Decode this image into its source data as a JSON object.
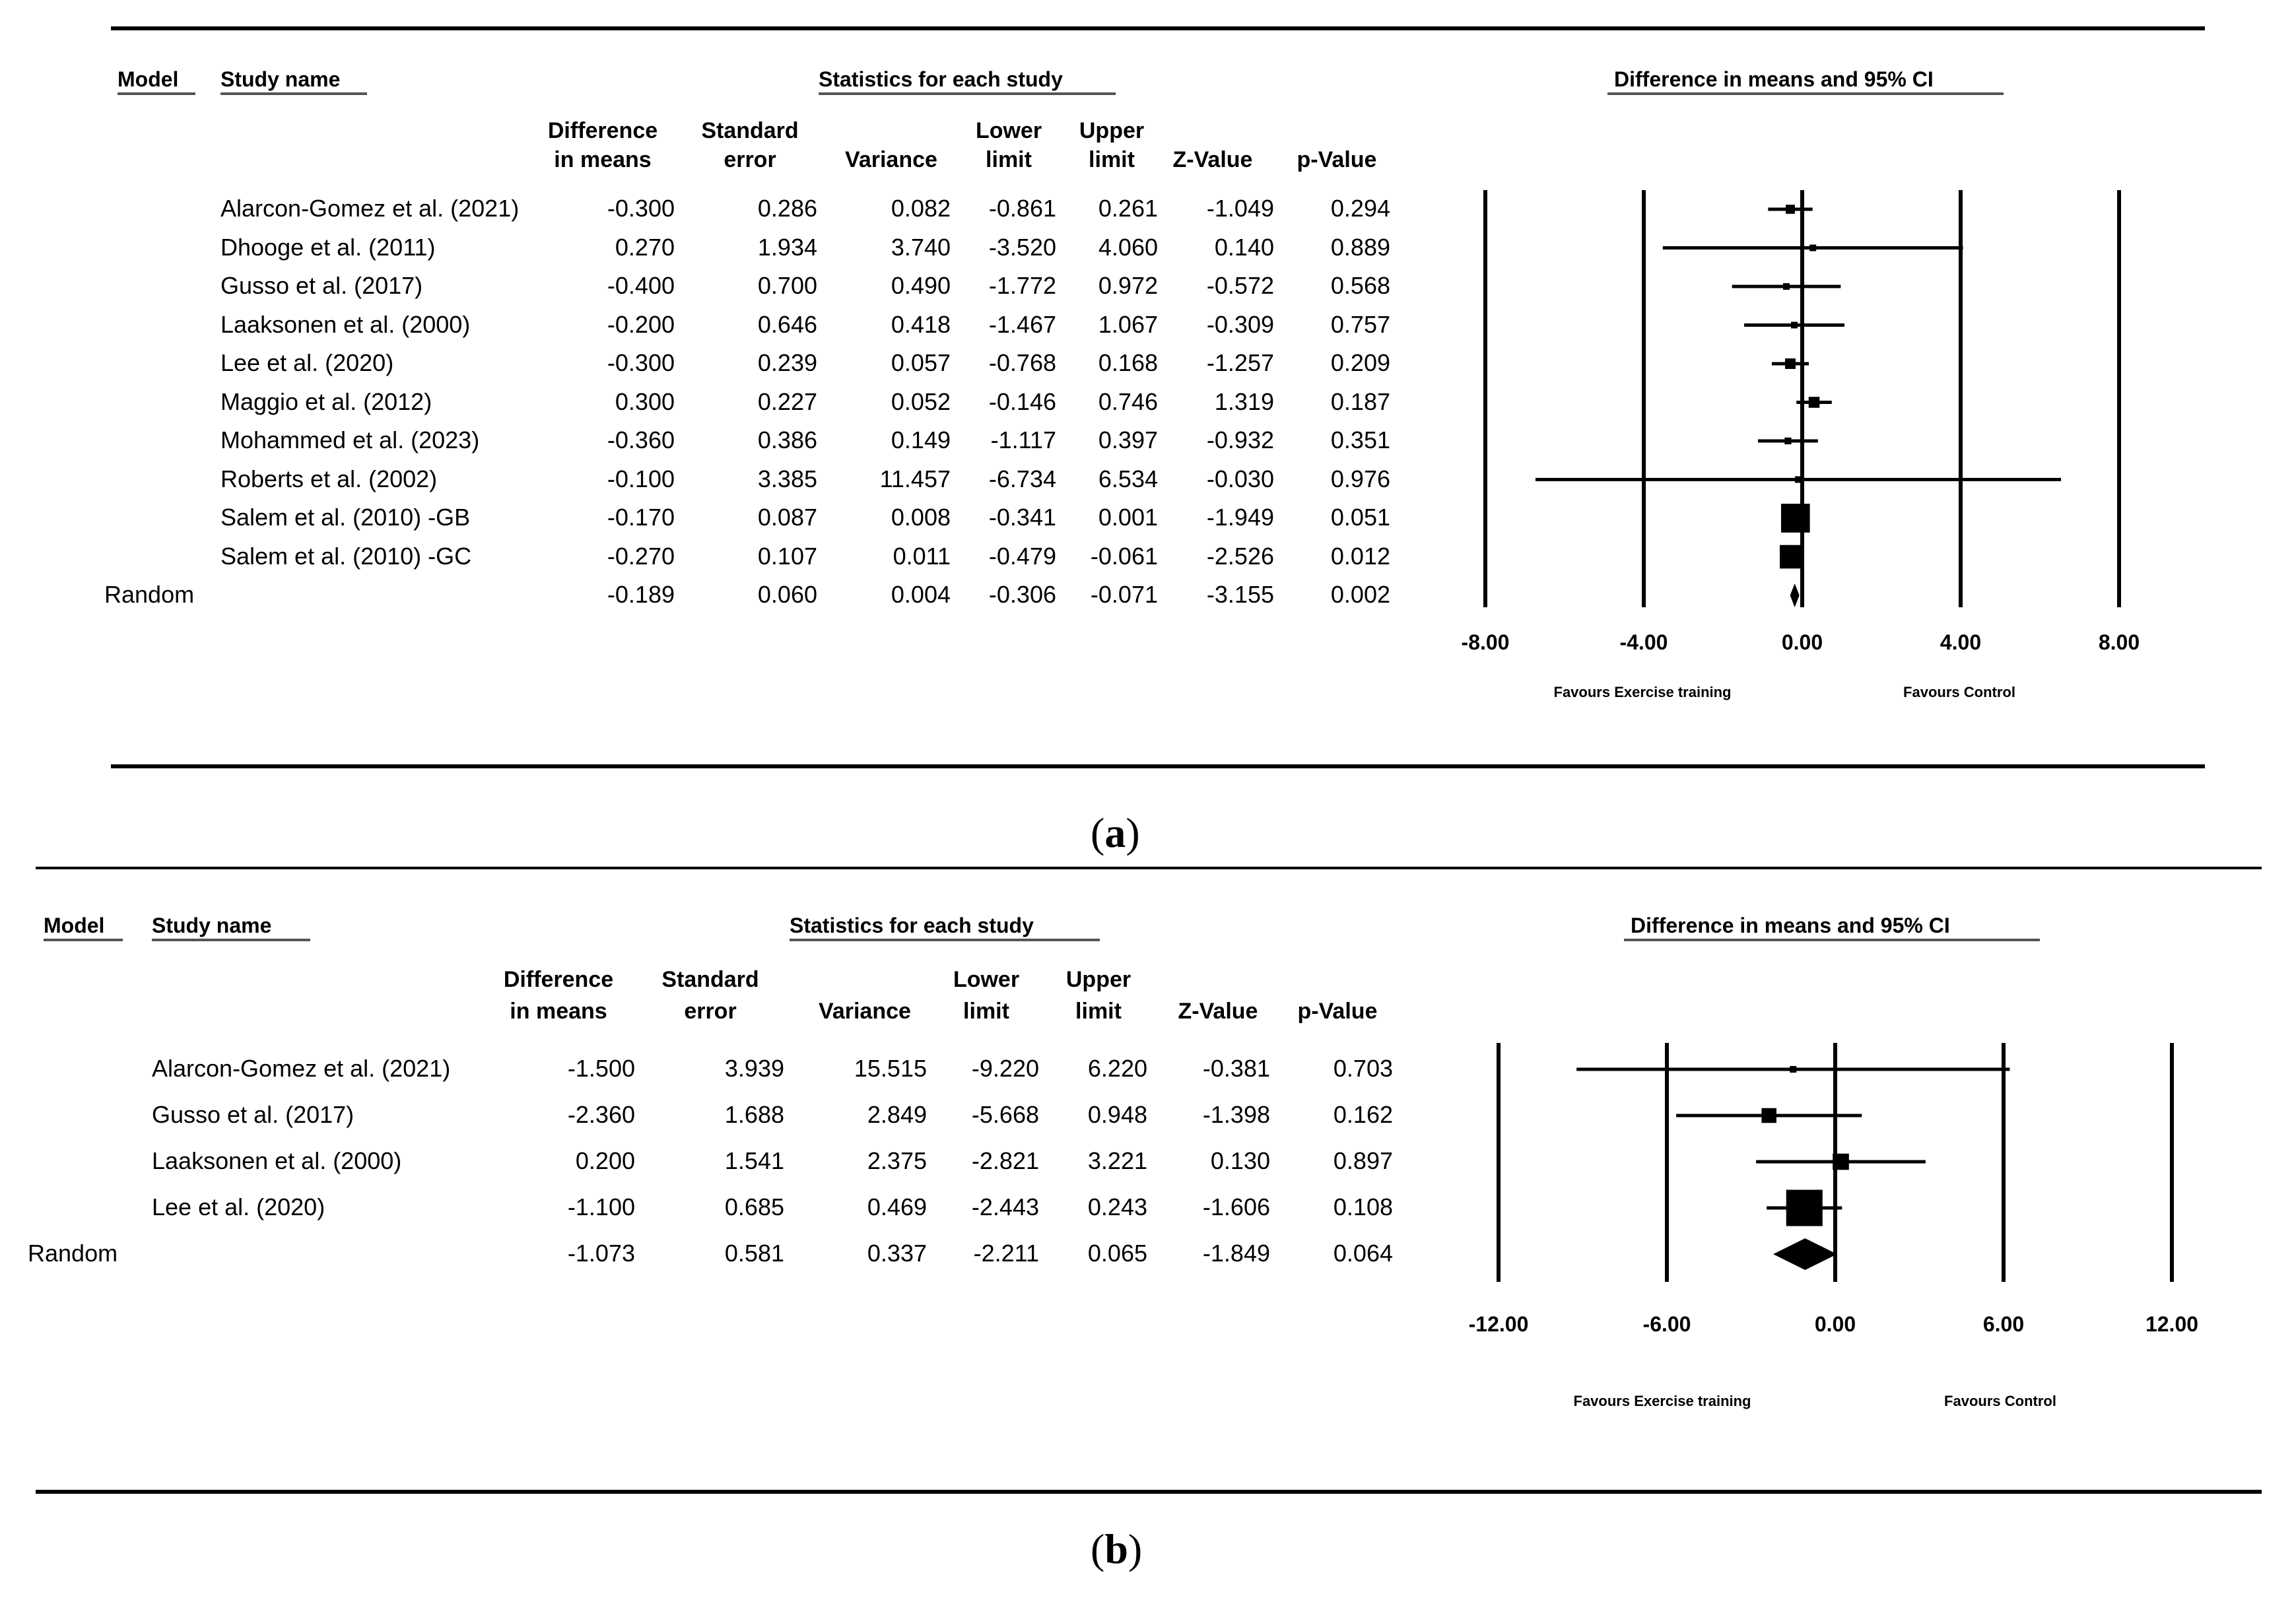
{
  "captions": [
    "a",
    "b"
  ],
  "headers": {
    "model": "Model",
    "study_name": "Study name",
    "statistics": "Statistics for each study",
    "plot_title": "Difference in means and 95% CI",
    "cols": [
      [
        "Difference",
        "in means"
      ],
      [
        "Standard",
        "error"
      ],
      [
        "",
        "Variance"
      ],
      [
        "Lower",
        "limit"
      ],
      [
        "Upper",
        "limit"
      ],
      [
        "",
        "Z-Value"
      ],
      [
        "",
        "p-Value"
      ]
    ]
  },
  "chart_data": [
    {
      "type": "forest",
      "panel": "a",
      "title": "Difference in means and 95% CI",
      "xlabel_left": "Favours Exercise training",
      "xlabel_right": "Favours Control",
      "xlim": [
        -8,
        8
      ],
      "ticks": [
        "-8.00",
        "-4.00",
        "0.00",
        "4.00",
        "8.00"
      ],
      "tick_values": [
        -8,
        -4,
        0,
        4,
        8
      ],
      "rows": [
        {
          "study": "Alarcon-Gomez et al. (2021)",
          "diff": "-0.300",
          "se": "0.286",
          "var": "0.082",
          "lower": "-0.861",
          "upper": "0.261",
          "z": "-1.049",
          "p": "0.294",
          "weight": 0.09
        },
        {
          "study": "Dhooge et al. (2011)",
          "diff": "0.270",
          "se": "1.934",
          "var": "3.740",
          "lower": "-3.520",
          "upper": "4.060",
          "z": "0.140",
          "p": "0.889",
          "weight": 0.01
        },
        {
          "study": "Gusso et al. (2017)",
          "diff": "-0.400",
          "se": "0.700",
          "var": "0.490",
          "lower": "-1.772",
          "upper": "0.972",
          "z": "-0.572",
          "p": "0.568",
          "weight": 0.02
        },
        {
          "study": "Laaksonen et al. (2000)",
          "diff": "-0.200",
          "se": "0.646",
          "var": "0.418",
          "lower": "-1.467",
          "upper": "1.067",
          "z": "-0.309",
          "p": "0.757",
          "weight": 0.02
        },
        {
          "study": "Lee et al. (2020)",
          "diff": "-0.300",
          "se": "0.239",
          "var": "0.057",
          "lower": "-0.768",
          "upper": "0.168",
          "z": "-1.257",
          "p": "0.209",
          "weight": 0.12
        },
        {
          "study": "Maggio et al. (2012)",
          "diff": "0.300",
          "se": "0.227",
          "var": "0.052",
          "lower": "-0.146",
          "upper": "0.746",
          "z": "1.319",
          "p": "0.187",
          "weight": 0.13
        },
        {
          "study": "Mohammed et al. (2023)",
          "diff": "-0.360",
          "se": "0.386",
          "var": "0.149",
          "lower": "-1.117",
          "upper": "0.397",
          "z": "-0.932",
          "p": "0.351",
          "weight": 0.05
        },
        {
          "study": "Roberts et al. (2002)",
          "diff": "-0.100",
          "se": "3.385",
          "var": "11.457",
          "lower": "-6.734",
          "upper": "6.534",
          "z": "-0.030",
          "p": "0.976",
          "weight": 0.002
        },
        {
          "study": "Salem  et al. (2010) -GB",
          "diff": "-0.170",
          "se": "0.087",
          "var": "0.008",
          "lower": "-0.341",
          "upper": "0.001",
          "z": "-1.949",
          "p": "0.051",
          "weight": 0.9
        },
        {
          "study": "Salem  et al. (2010) -GC",
          "diff": "-0.270",
          "se": "0.107",
          "var": "0.011",
          "lower": "-0.479",
          "upper": "-0.061",
          "z": "-2.526",
          "p": "0.012",
          "weight": 0.6
        }
      ],
      "summary": {
        "label": "Random",
        "diff": "-0.189",
        "se": "0.060",
        "var": "0.004",
        "lower": "-0.306",
        "upper": "-0.071",
        "z": "-3.155",
        "p": "0.002"
      }
    },
    {
      "type": "forest",
      "panel": "b",
      "title": "Difference in means and 95% CI",
      "xlabel_left": "Favours Exercise training",
      "xlabel_right": "Favours Control",
      "xlim": [
        -12,
        12
      ],
      "ticks": [
        "-12.00",
        "-6.00",
        "0.00",
        "6.00",
        "12.00"
      ],
      "tick_values": [
        -12,
        -6,
        0,
        6,
        12
      ],
      "rows": [
        {
          "study": "Alarcon-Gomez et al. (2021)",
          "diff": "-1.500",
          "se": "3.939",
          "var": "15.515",
          "lower": "-9.220",
          "upper": "6.220",
          "z": "-0.381",
          "p": "0.703",
          "weight": 0.03
        },
        {
          "study": "Gusso et al. (2017)",
          "diff": "-2.360",
          "se": "1.688",
          "var": "2.849",
          "lower": "-5.668",
          "upper": "0.948",
          "z": "-1.398",
          "p": "0.162",
          "weight": 0.15
        },
        {
          "study": "Laaksonen et al. (2000)",
          "diff": "0.200",
          "se": "1.541",
          "var": "2.375",
          "lower": "-2.821",
          "upper": "3.221",
          "z": "0.130",
          "p": "0.897",
          "weight": 0.18
        },
        {
          "study": "Lee et al. (2020)",
          "diff": "-1.100",
          "se": "0.685",
          "var": "0.469",
          "lower": "-2.443",
          "upper": "0.243",
          "z": "-1.606",
          "p": "0.108",
          "weight": 0.9
        }
      ],
      "summary": {
        "label": "Random",
        "diff": "-1.073",
        "se": "0.581",
        "var": "0.337",
        "lower": "-2.211",
        "upper": "0.065",
        "z": "-1.849",
        "p": "0.064"
      }
    }
  ]
}
